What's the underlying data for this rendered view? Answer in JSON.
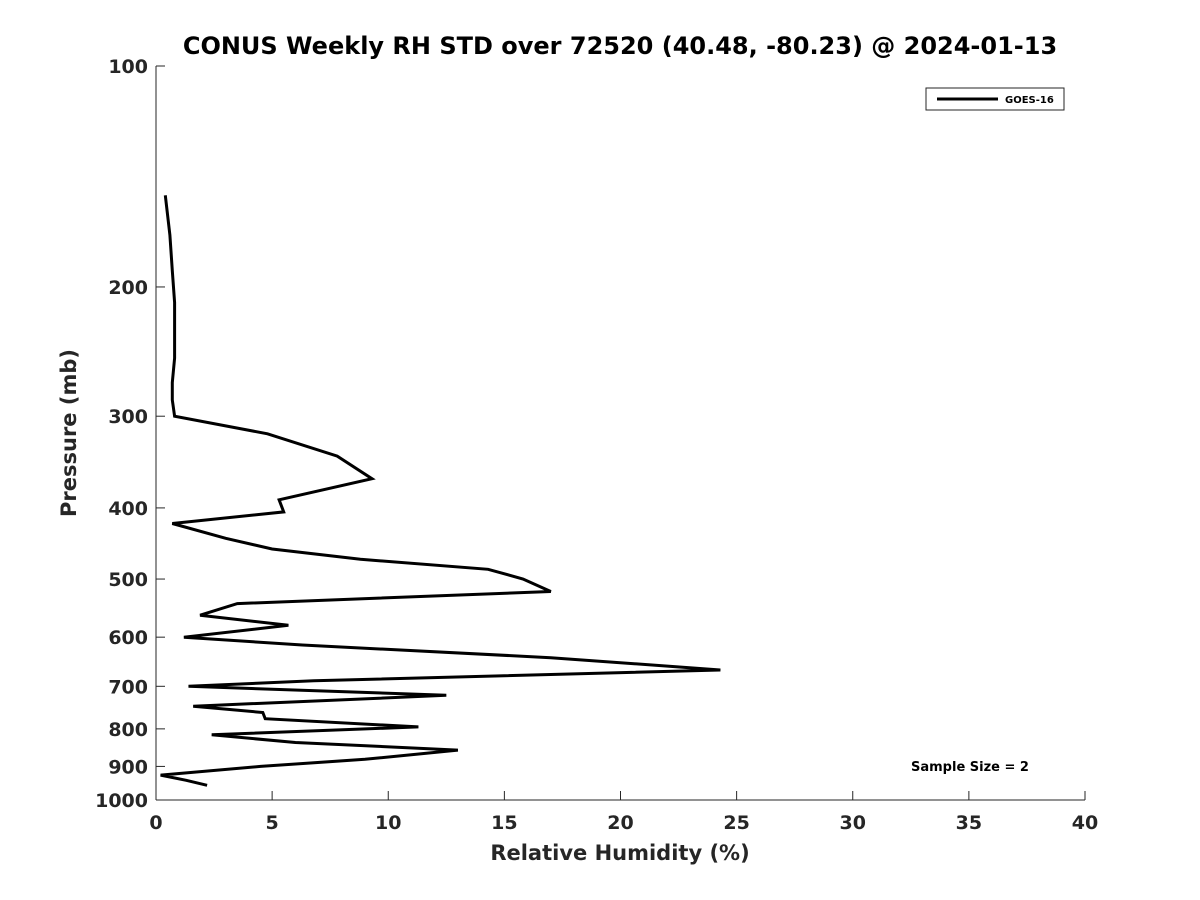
{
  "chart_data": {
    "type": "line",
    "title": "CONUS Weekly RH STD over 72520 (40.48, -80.23) @ 2024-01-13",
    "xlabel": "Relative Humidity (%)",
    "ylabel": "Pressure (mb)",
    "xlim": [
      0,
      40
    ],
    "ylim": [
      1000,
      100
    ],
    "y_scale": "log",
    "x_ticks": [
      "0",
      "5",
      "10",
      "15",
      "20",
      "25",
      "30",
      "35",
      "40"
    ],
    "y_ticks": [
      "100",
      "200",
      "300",
      "400",
      "500",
      "600",
      "700",
      "800",
      "900",
      "1000"
    ],
    "legend_position": "top-right",
    "annotation": "Sample Size = 2",
    "series": [
      {
        "name": "GOES-16",
        "color": "#000000",
        "points": [
          [
            0.4,
            150
          ],
          [
            0.6,
            170
          ],
          [
            0.7,
            190
          ],
          [
            0.8,
            210
          ],
          [
            0.8,
            230
          ],
          [
            0.8,
            250
          ],
          [
            0.7,
            270
          ],
          [
            0.7,
            285
          ],
          [
            0.8,
            300
          ],
          [
            4.8,
            317
          ],
          [
            7.8,
            340
          ],
          [
            9.3,
            365
          ],
          [
            5.3,
            390
          ],
          [
            5.5,
            405
          ],
          [
            0.7,
            420
          ],
          [
            3.0,
            440
          ],
          [
            5.0,
            455
          ],
          [
            8.8,
            470
          ],
          [
            14.3,
            485
          ],
          [
            15.8,
            500
          ],
          [
            17.0,
            520
          ],
          [
            3.5,
            540
          ],
          [
            1.9,
            560
          ],
          [
            5.7,
            578
          ],
          [
            1.2,
            600
          ],
          [
            6.3,
            615
          ],
          [
            17.0,
            640
          ],
          [
            24.3,
            665
          ],
          [
            6.8,
            688
          ],
          [
            1.4,
            700
          ],
          [
            12.5,
            720
          ],
          [
            1.6,
            745
          ],
          [
            4.6,
            760
          ],
          [
            4.7,
            775
          ],
          [
            11.3,
            795
          ],
          [
            2.4,
            815
          ],
          [
            6.0,
            835
          ],
          [
            13.0,
            855
          ],
          [
            9.0,
            880
          ],
          [
            4.5,
            900
          ],
          [
            0.2,
            925
          ],
          [
            1.3,
            940
          ],
          [
            2.2,
            955
          ]
        ]
      }
    ]
  }
}
